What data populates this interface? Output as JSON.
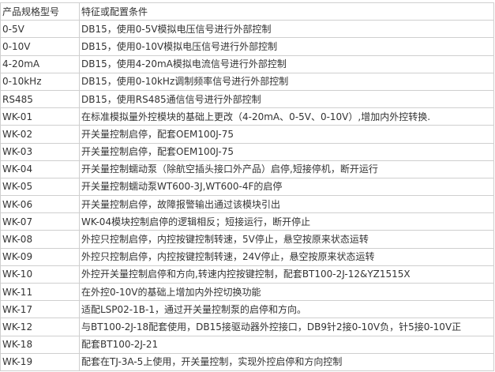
{
  "table": {
    "headers": [
      "产品规格型号",
      "特征或配置条件"
    ],
    "rows": [
      [
        "0-5V",
        "DB15，使用0-5V模拟电压信号进行外部控制"
      ],
      [
        "0-10V",
        "DB15，使用0-10V模拟电压信号进行外部控制"
      ],
      [
        "4-20mA",
        "DB15，使用4-20mA模拟电流信号进行外部控制"
      ],
      [
        "0-10kHz",
        "DB15，使用0-10kHz调制频率信号进行外部控制"
      ],
      [
        "RS485",
        "DB15，使用RS485通信信号进行外部控制"
      ],
      [
        "WK-01",
        "在标准模拟量外控模块的基础上更改（4-20mA、0-5V、0-10V）,增加内外控转换."
      ],
      [
        "WK-02",
        "开关量控制启停，配套OEM100J-75"
      ],
      [
        "WK-03",
        "开关量控制启停，配套OEM100J-75"
      ],
      [
        "WK-04",
        "开关量控制蠕动泵（除航空插头接口外产品）启停,短接停机，断开运行"
      ],
      [
        "WK-05",
        "开关量控制蠕动泵WT600-3J,WT600-4F的启停"
      ],
      [
        "WK-06",
        "开关量控制启停，故障报警输出通过该模块引出"
      ],
      [
        "WK-07",
        "WK-04模块控制启停的逻辑相反；短接运行，断开停止"
      ],
      [
        "WK-08",
        "外控只控制启停，内控按键控制转速，5V停止，悬空按原来状态运转"
      ],
      [
        "WK-09",
        "外控只控制启停，内控按键控制转速，24V停止，悬空按原来状态运转"
      ],
      [
        "WK-10",
        "外控开关量控制启停和方向,转速内控按键控制，配套BT100-2J-12&YZ1515X"
      ],
      [
        "WK-11",
        "在外控0-10V的基础上增加内外控切换功能"
      ],
      [
        "WK-17",
        "适配LSP02-1B-1，通过开关量控制泵的启停和方向。"
      ],
      [
        "WK-12",
        "与BT100-2J-18配套使用，DB15接驱动器外控接口，DB9针2接0-10V负，针5接0-10V正"
      ],
      [
        "WK-18",
        "配套BT100-2J-21"
      ],
      [
        "WK-19",
        "配套在TJ-3A-5上使用，开关量控制，实现外控启停和方向控制"
      ]
    ]
  }
}
